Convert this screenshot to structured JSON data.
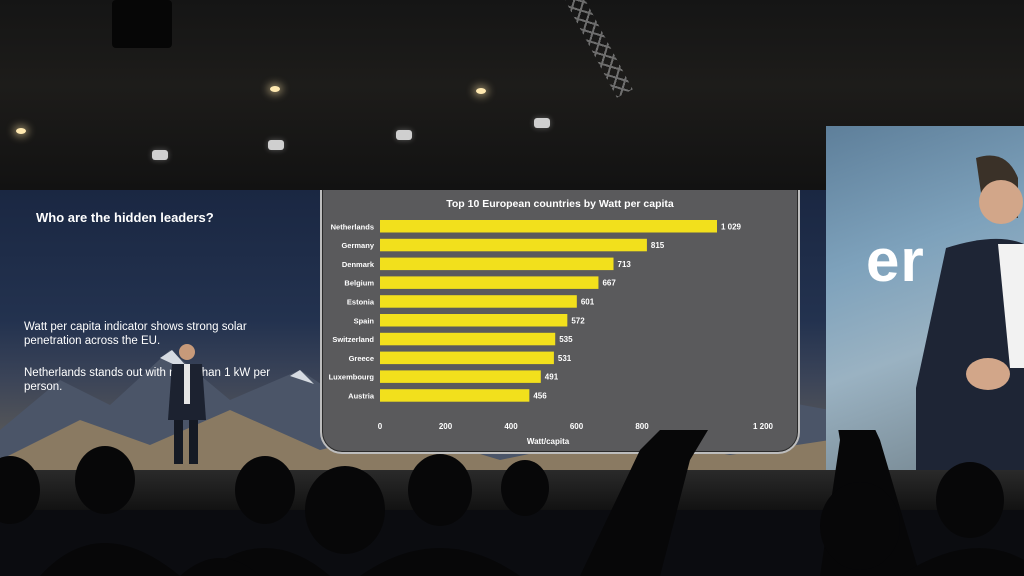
{
  "slide": {
    "title": "Who are the hidden leaders?",
    "paragraph1": "Watt per capita indicator shows strong solar penetration across the EU.",
    "paragraph2": "Netherlands stands out with more than 1 kW per person."
  },
  "right_screen": {
    "text": "er"
  },
  "chart_data": {
    "type": "bar",
    "orientation": "horizontal",
    "title": "Top 10 European countries by Watt per capita",
    "xlabel": "Watt/capita",
    "ylabel": "",
    "categories": [
      "Netherlands",
      "Germany",
      "Denmark",
      "Belgium",
      "Estonia",
      "Spain",
      "Switzerland",
      "Greece",
      "Luxembourg",
      "Austria"
    ],
    "values": [
      1029,
      815,
      713,
      667,
      601,
      572,
      535,
      531,
      491,
      456
    ],
    "value_labels": [
      "1 029",
      "815",
      "713",
      "667",
      "601",
      "572",
      "535",
      "531",
      "491",
      "456"
    ],
    "xlim": [
      0,
      1200
    ],
    "xticks": [
      0,
      200,
      400,
      600,
      800,
      1200
    ],
    "xtick_labels": [
      "0",
      "200",
      "400",
      "600",
      "800",
      "1 200"
    ],
    "bar_color": "#f2e01c",
    "grid": false,
    "legend": "none"
  }
}
